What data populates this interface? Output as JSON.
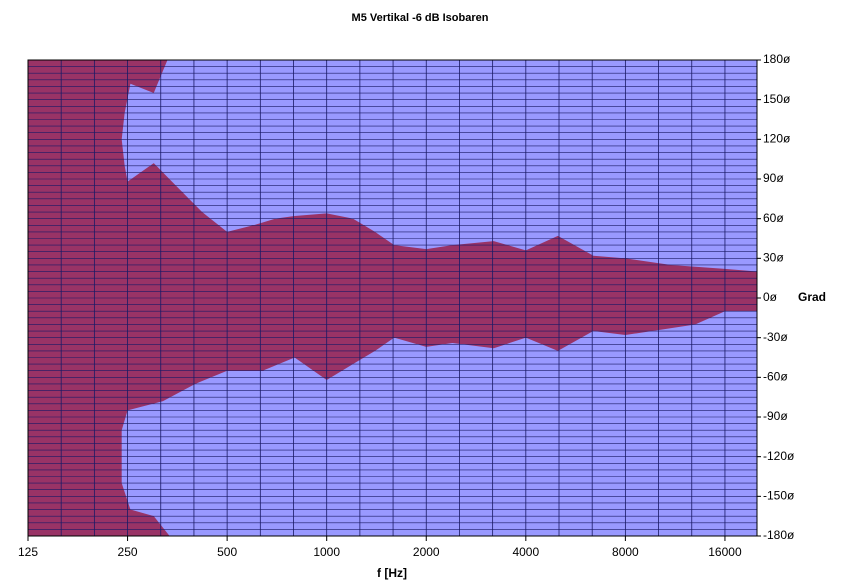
{
  "chart_data": {
    "type": "contour",
    "title": "M5 Vertikal -6 dB Isobaren",
    "x_label": "f [Hz]",
    "y_label": "Grad",
    "log_x": true,
    "background": "#9999ff",
    "grid_color": "#1a1a66",
    "xgrid_per_octave": 3,
    "ygrid_step": 5,
    "xlim": [
      125,
      20000
    ],
    "ylim": [
      -180,
      180
    ],
    "xticks": [
      125,
      250,
      500,
      1000,
      2000,
      4000,
      8000,
      16000
    ],
    "yticks": [
      {
        "value": 180,
        "label": "180ø"
      },
      {
        "value": 150,
        "label": "150ø"
      },
      {
        "value": 120,
        "label": "120ø"
      },
      {
        "value": 90,
        "label": "90ø"
      },
      {
        "value": 60,
        "label": "60ø"
      },
      {
        "value": 30,
        "label": "30ø"
      },
      {
        "value": 0,
        "label": "0ø"
      },
      {
        "value": -30,
        "label": "-30ø"
      },
      {
        "value": -60,
        "label": "-60ø"
      },
      {
        "value": -90,
        "label": "-90ø"
      },
      {
        "value": -120,
        "label": "-120ø"
      },
      {
        "value": -150,
        "label": "-150ø"
      },
      {
        "value": -180,
        "label": "-180ø"
      }
    ],
    "regions": [
      {
        "color": "#993366",
        "x": [
          125,
          330,
          300,
          255,
          245,
          240,
          245,
          250,
          300,
          350,
          420,
          500,
          600,
          700,
          800,
          1000,
          1200,
          1400,
          1600,
          2000,
          2400,
          3200,
          4000,
          5000,
          6400,
          8000,
          11000,
          16000,
          20000,
          20000,
          16000,
          13000,
          8000,
          6400,
          5000,
          4000,
          3200,
          2400,
          2000,
          1600,
          1400,
          1200,
          1000,
          800,
          640,
          500,
          400,
          320,
          250,
          240,
          240,
          255,
          300,
          335,
          125
        ],
        "y": [
          180,
          180,
          155,
          162,
          140,
          120,
          100,
          88,
          102,
          85,
          65,
          50,
          55,
          60,
          62,
          64,
          60,
          50,
          40,
          37,
          40,
          43,
          36,
          47,
          32,
          30,
          25,
          22,
          20,
          -10,
          -10,
          -20,
          -28,
          -25,
          -40,
          -30,
          -38,
          -34,
          -37,
          -30,
          -40,
          -50,
          -62,
          -45,
          -55,
          -55,
          -65,
          -78,
          -85,
          -100,
          -140,
          -160,
          -165,
          -180,
          -180
        ]
      }
    ]
  }
}
